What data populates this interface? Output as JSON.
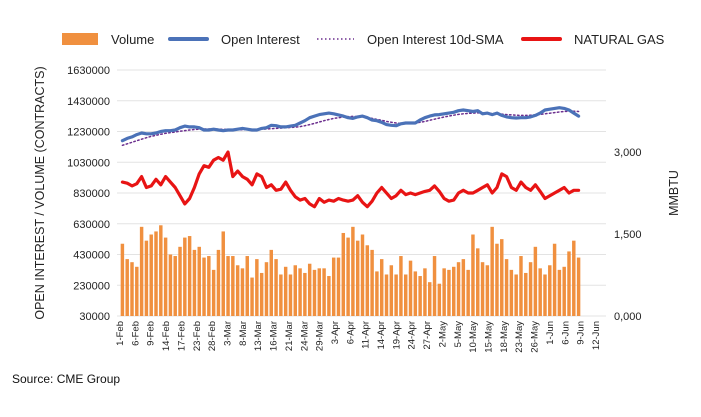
{
  "chart_data": {
    "type": "bar+line",
    "source": "Source: CME Group",
    "legend": [
      {
        "name": "Volume",
        "type": "bar",
        "color": "#F0903F"
      },
      {
        "name": "Open Interest",
        "type": "line",
        "color": "#4B72B8"
      },
      {
        "name": "Open Interest 10d-SMA",
        "type": "dotted-line",
        "color": "#6B2E8E"
      },
      {
        "name": "NATURAL GAS",
        "type": "line",
        "color": "#E81414"
      }
    ],
    "legend_position": "top",
    "left_axis": {
      "title": "OPEN INTEREST / VOLUME (CONTRACTS)",
      "min": 30000,
      "max": 1630000,
      "ticks": [
        "1630000",
        "1430000",
        "1230000",
        "1030000",
        "830000",
        "630000",
        "430000",
        "230000",
        "30000"
      ]
    },
    "right_axis": {
      "title": "MMBTU",
      "min": 0,
      "max": 4.5,
      "ticks": [
        {
          "value": 3.0,
          "label": "3,000"
        },
        {
          "value": 1.5,
          "label": "1,500"
        },
        {
          "value": 0.0,
          "label": "0,000"
        }
      ]
    },
    "x_ticks": [
      "1-Feb",
      "6-Feb",
      "9-Feb",
      "14-Feb",
      "17-Feb",
      "23-Feb",
      "28-Feb",
      "3-Mar",
      "8-Mar",
      "13-Mar",
      "16-Mar",
      "21-Mar",
      "24-Mar",
      "29-Mar",
      "3-Apr",
      "6-Apr",
      "11-Apr",
      "14-Apr",
      "19-Apr",
      "24-Apr",
      "27-Apr",
      "2-May",
      "5-May",
      "10-May",
      "15-May",
      "18-May",
      "23-May",
      "26-May",
      "1-Jun",
      "6-Jun",
      "9-Jun",
      "12-Jun"
    ],
    "grid": "horizontal",
    "volume": [
      500000,
      400000,
      380000,
      350000,
      610000,
      520000,
      560000,
      580000,
      620000,
      540000,
      430000,
      420000,
      480000,
      540000,
      550000,
      460000,
      480000,
      410000,
      420000,
      330000,
      460000,
      580000,
      420000,
      420000,
      360000,
      340000,
      420000,
      280000,
      400000,
      310000,
      380000,
      460000,
      400000,
      300000,
      350000,
      300000,
      360000,
      340000,
      310000,
      370000,
      330000,
      340000,
      340000,
      290000,
      410000,
      410000,
      570000,
      540000,
      610000,
      520000,
      560000,
      490000,
      460000,
      320000,
      400000,
      300000,
      360000,
      300000,
      420000,
      300000,
      390000,
      320000,
      290000,
      340000,
      250000,
      420000,
      240000,
      340000,
      330000,
      350000,
      380000,
      400000,
      330000,
      560000,
      470000,
      380000,
      360000,
      610000,
      500000,
      530000,
      400000,
      330000,
      300000,
      420000,
      310000,
      380000,
      480000,
      340000,
      300000,
      360000,
      500000,
      330000,
      350000,
      450000,
      520000,
      410000
    ],
    "open_interest": [
      1170000,
      1185000,
      1195000,
      1210000,
      1220000,
      1215000,
      1215000,
      1220000,
      1230000,
      1235000,
      1235000,
      1240000,
      1255000,
      1265000,
      1260000,
      1260000,
      1255000,
      1240000,
      1240000,
      1245000,
      1240000,
      1235000,
      1240000,
      1240000,
      1245000,
      1250000,
      1245000,
      1240000,
      1240000,
      1250000,
      1255000,
      1270000,
      1268000,
      1260000,
      1260000,
      1265000,
      1270000,
      1285000,
      1300000,
      1320000,
      1330000,
      1340000,
      1345000,
      1350000,
      1345000,
      1338000,
      1330000,
      1320000,
      1315000,
      1325000,
      1330000,
      1320000,
      1305000,
      1300000,
      1290000,
      1275000,
      1270000,
      1268000,
      1280000,
      1285000,
      1285000,
      1285000,
      1305000,
      1320000,
      1330000,
      1338000,
      1340000,
      1345000,
      1350000,
      1355000,
      1365000,
      1370000,
      1365000,
      1360000,
      1365000,
      1345000,
      1350000,
      1340000,
      1350000,
      1335000,
      1325000,
      1320000,
      1318000,
      1320000,
      1320000,
      1325000,
      1335000,
      1350000,
      1370000,
      1375000,
      1380000,
      1385000,
      1380000,
      1370000,
      1350000,
      1330000
    ],
    "open_interest_sma": [
      1140000,
      1150000,
      1160000,
      1170000,
      1180000,
      1190000,
      1198000,
      1205000,
      1212000,
      1218000,
      1223000,
      1227000,
      1232000,
      1236000,
      1240000,
      1243000,
      1245000,
      1246000,
      1246000,
      1246000,
      1245000,
      1244000,
      1243000,
      1242000,
      1242000,
      1242000,
      1243000,
      1244000,
      1244000,
      1245000,
      1246000,
      1248000,
      1250000,
      1252000,
      1254000,
      1256000,
      1258000,
      1262000,
      1268000,
      1275000,
      1283000,
      1292000,
      1300000,
      1308000,
      1315000,
      1320000,
      1324000,
      1327000,
      1328000,
      1327000,
      1324000,
      1320000,
      1315000,
      1309000,
      1303000,
      1296000,
      1290000,
      1285000,
      1282000,
      1281000,
      1282000,
      1285000,
      1290000,
      1296000,
      1303000,
      1310000,
      1317000,
      1324000,
      1330000,
      1336000,
      1341000,
      1345000,
      1348000,
      1350000,
      1351000,
      1351000,
      1350000,
      1348000,
      1346000,
      1343000,
      1340000,
      1338000,
      1336000,
      1335000,
      1335000,
      1336000,
      1338000,
      1341000,
      1345000,
      1349000,
      1353000,
      1357000,
      1360000,
      1362000,
      1362000,
      1360000
    ],
    "natural_gas": [
      2.45,
      2.43,
      2.38,
      2.42,
      2.55,
      2.35,
      2.38,
      2.5,
      2.4,
      2.55,
      2.45,
      2.35,
      2.2,
      2.05,
      2.15,
      2.35,
      2.6,
      2.75,
      2.72,
      2.85,
      2.9,
      2.85,
      3.0,
      2.55,
      2.65,
      2.55,
      2.5,
      2.4,
      2.6,
      2.55,
      2.35,
      2.4,
      2.3,
      2.32,
      2.45,
      2.3,
      2.18,
      2.12,
      2.15,
      2.05,
      2.0,
      2.15,
      2.08,
      2.12,
      2.1,
      2.15,
      2.12,
      2.1,
      2.12,
      2.2,
      2.08,
      2.0,
      2.1,
      2.25,
      2.35,
      2.25,
      2.15,
      2.2,
      2.3,
      2.22,
      2.25,
      2.22,
      2.25,
      2.28,
      2.3,
      2.38,
      2.28,
      2.15,
      2.1,
      2.12,
      2.25,
      2.3,
      2.25,
      2.25,
      2.3,
      2.35,
      2.4,
      2.25,
      2.35,
      2.6,
      2.55,
      2.35,
      2.3,
      2.45,
      2.35,
      2.3,
      2.4,
      2.28,
      2.15,
      2.2,
      2.25,
      2.3,
      2.35,
      2.25,
      2.3,
      2.3
    ]
  }
}
